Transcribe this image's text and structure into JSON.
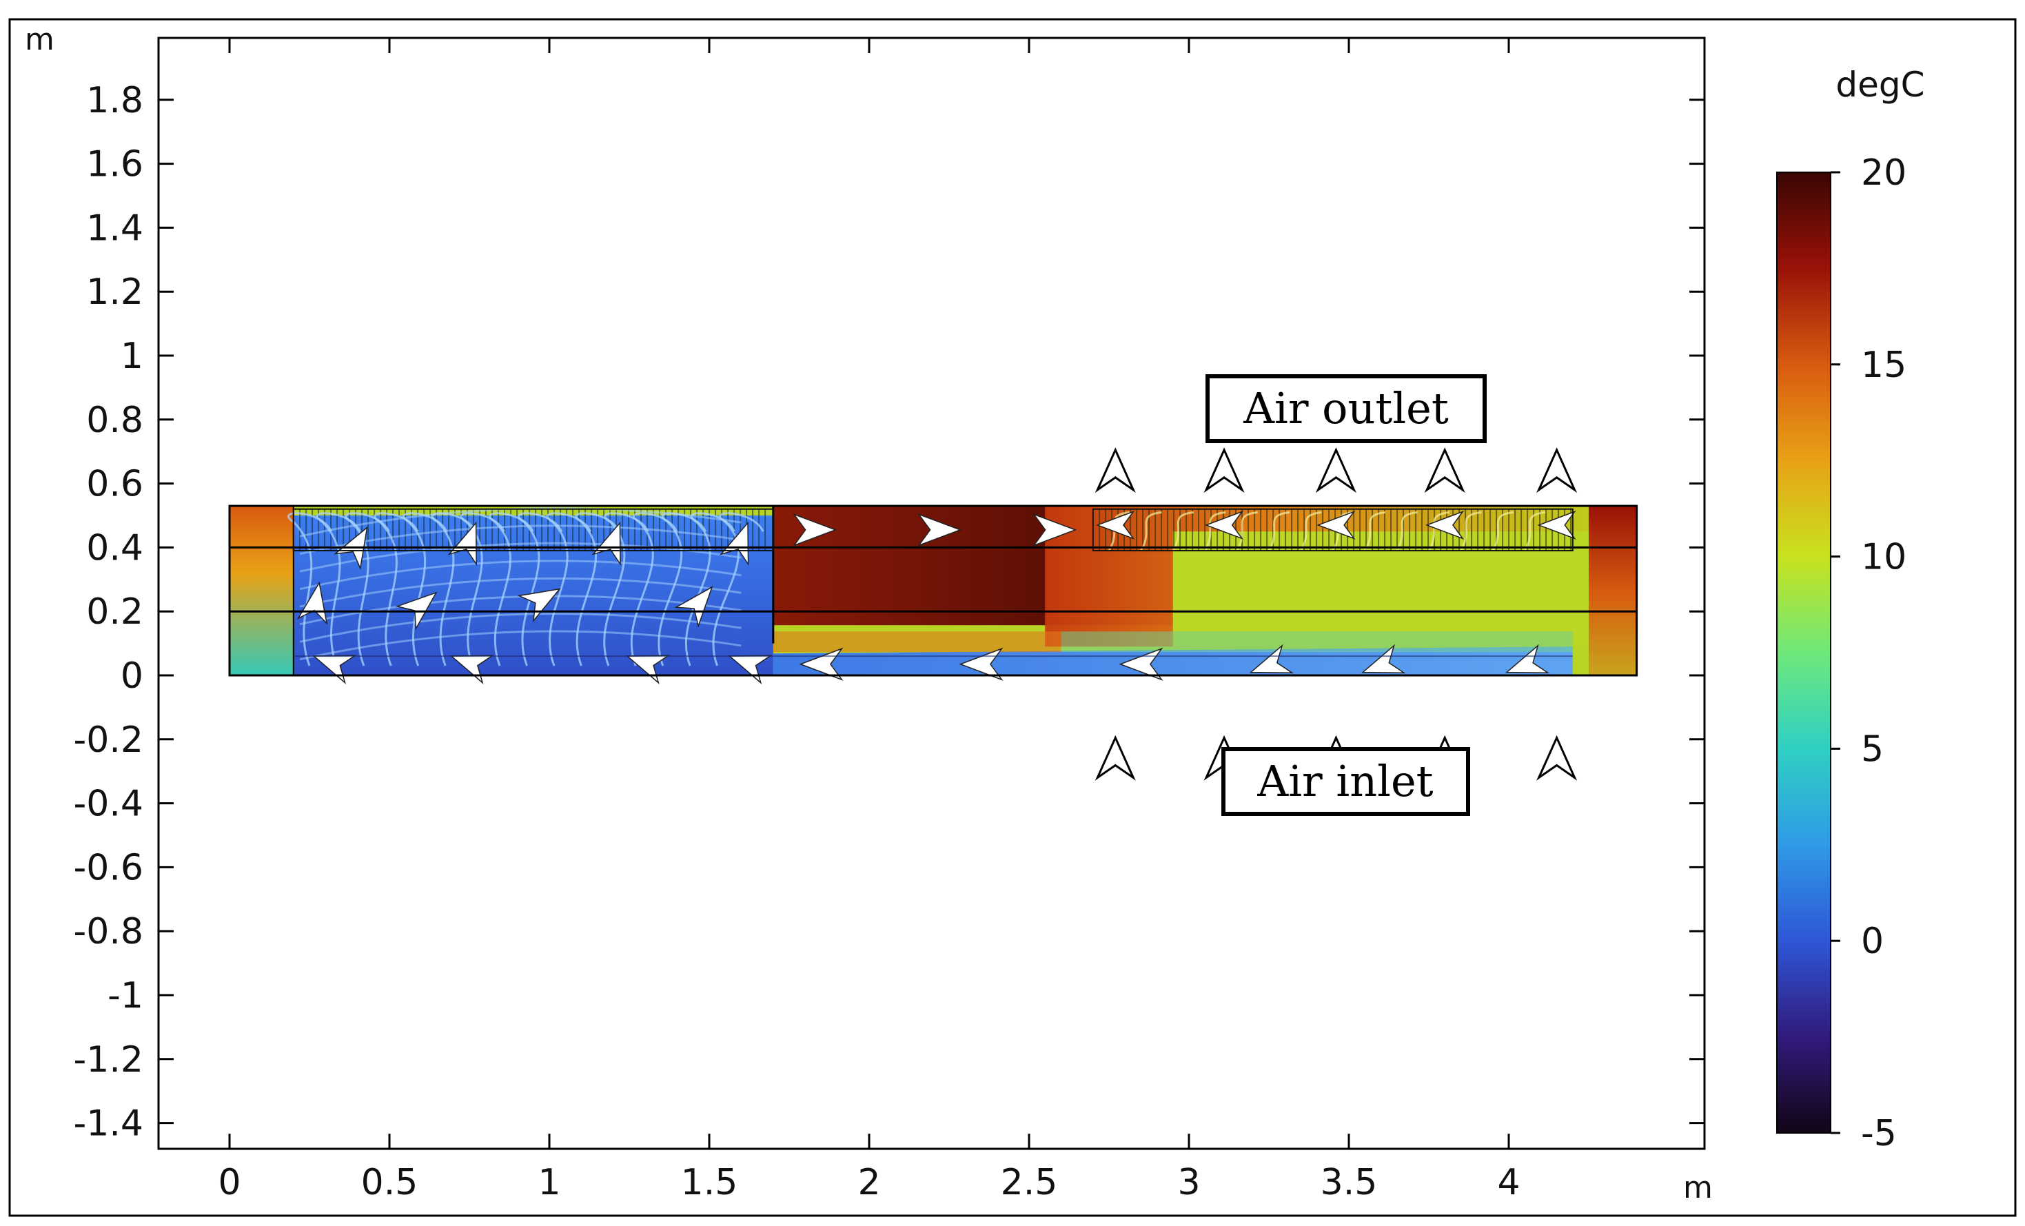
{
  "plot": {
    "x_unit": "m",
    "y_unit": "m",
    "x_ticks": [
      0,
      0.5,
      1,
      1.5,
      2,
      2.5,
      3,
      3.5,
      4
    ],
    "x_tick_labels": [
      "0",
      "0.5",
      "1",
      "1.5",
      "2",
      "2.5",
      "3",
      "3.5",
      "4"
    ],
    "y_ticks": [
      1.8,
      1.6,
      1.4,
      1.2,
      1,
      0.8,
      0.6,
      0.4,
      0.2,
      0,
      -0.2,
      -0.4,
      -0.6,
      -0.8,
      -1,
      -1.2,
      -1.4
    ],
    "y_tick_labels": [
      "1.8",
      "1.6",
      "1.4",
      "1.2",
      "1",
      "0.8",
      "0.6",
      "0.4",
      "0.2",
      "0",
      "-0.2",
      "-0.4",
      "-0.6",
      "-0.8",
      "-1",
      "-1.2",
      "-1.4"
    ],
    "x_range": [
      -0.22,
      4.6
    ],
    "y_range": [
      -1.47,
      2.0
    ]
  },
  "domain": {
    "x": [
      0,
      4.4
    ],
    "y": [
      0,
      0.53
    ],
    "inner_lines_y": [
      0.4,
      0.2
    ],
    "partition_x": [
      0.2,
      1.7
    ],
    "cold_zone_temp_range": [
      -1,
      2
    ],
    "hot_zone_temp_range": [
      17,
      19
    ]
  },
  "callouts": {
    "outlet_label": "Air outlet",
    "inlet_label": "Air inlet",
    "outlet_arrow_x": [
      2.77,
      3.11,
      3.46,
      3.8,
      4.15
    ],
    "inlet_arrow_x": [
      2.77,
      3.11,
      3.46,
      3.8,
      4.15
    ]
  },
  "colorbar": {
    "title": "degC",
    "min": -5,
    "max": 20,
    "tick_values": [
      20,
      15,
      10,
      5,
      0,
      -5
    ],
    "tick_labels": [
      "20",
      "15",
      "10",
      "5",
      "0",
      "-5"
    ],
    "colormap": [
      "#120516",
      "#311a7c",
      "#2e56d6",
      "#2f9ae6",
      "#2fd0c4",
      "#6ee87a",
      "#c8e21e",
      "#e8a216",
      "#d85a10",
      "#9a1208",
      "#3a0604"
    ]
  },
  "colors": {
    "hot": "#5a0a05",
    "warm": "#d86a14",
    "yellow": "#b8d424",
    "cold": "#3a6ad8",
    "streamline": "#a8d4ff"
  }
}
